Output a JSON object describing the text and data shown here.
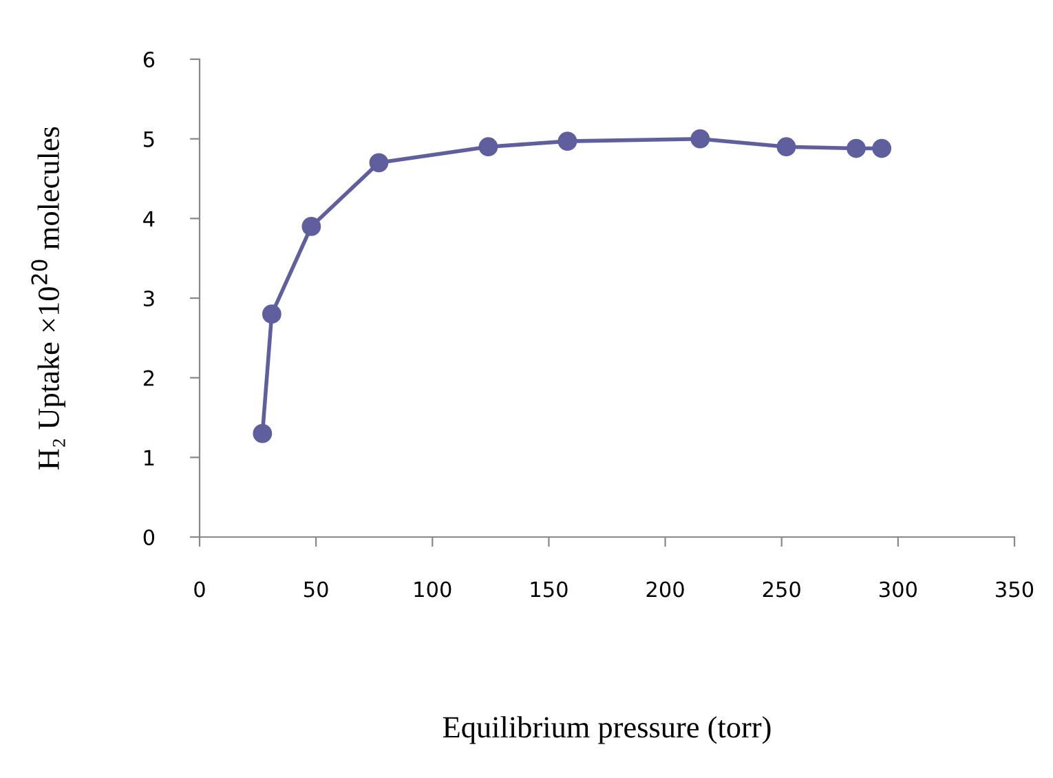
{
  "chart_data": {
    "type": "line",
    "xlabel": "Equilibrium pressure (torr)",
    "ylabel": "H₂ Uptake ×10$^{20}$ molecules",
    "x": [
      27,
      31,
      48,
      77,
      124,
      158,
      215,
      252,
      282,
      293
    ],
    "series": [
      {
        "color": "#5f5f9e",
        "values": [
          1.3,
          2.8,
          3.9,
          4.7,
          4.9,
          4.97,
          5.0,
          4.9,
          4.88,
          4.88
        ]
      }
    ],
    "xlim": [
      0,
      350
    ],
    "xticks": [
      0,
      50,
      100,
      150,
      200,
      250,
      300,
      350
    ],
    "ylim": [
      0,
      6
    ],
    "yticks": [
      0,
      1,
      2,
      3,
      4,
      5,
      6
    ],
    "marker": "circle",
    "line_style": "solid",
    "grid": false,
    "legend": false
  }
}
